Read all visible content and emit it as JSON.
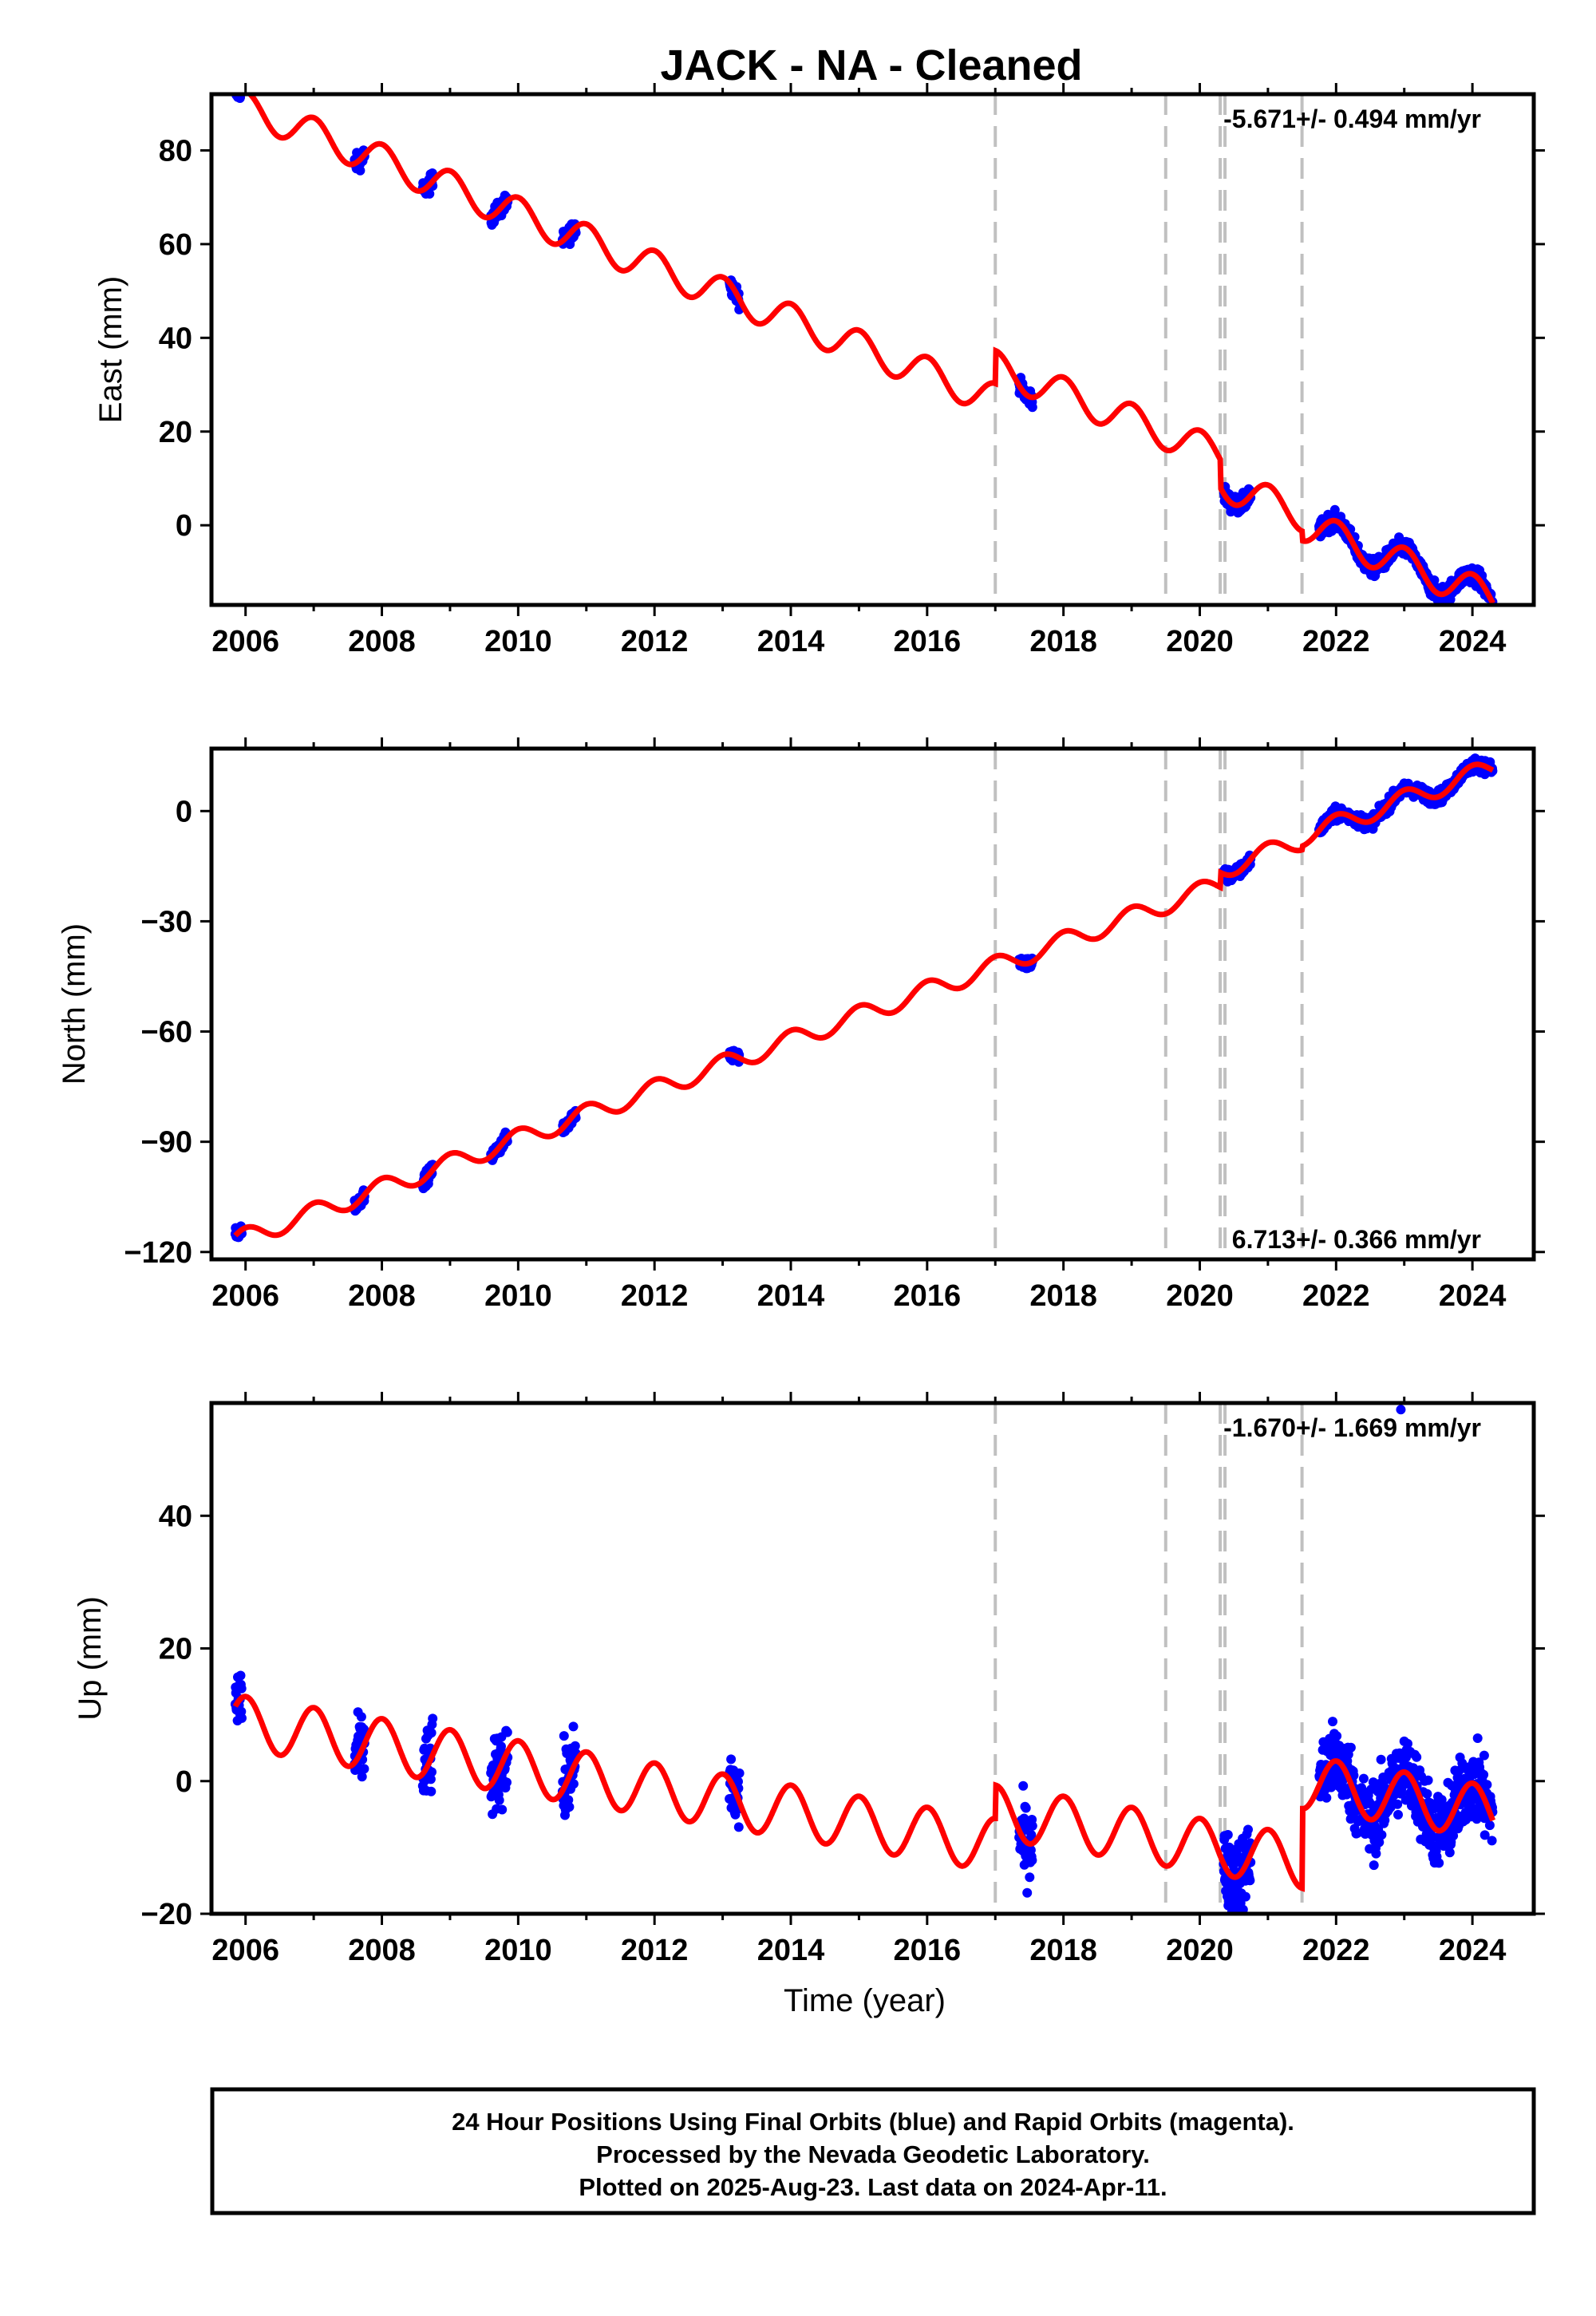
{
  "title": "JACK  - NA - Cleaned",
  "xlabel": "Time (year)",
  "footer": [
    "24 Hour Positions Using Final Orbits (blue) and Rapid Orbits (magenta).",
    "Processed by the Nevada Geodetic Laboratory.",
    "Plotted on 2025-Aug-23. Last data on 2024-Apr-11."
  ],
  "colors": {
    "data": "#0000ff",
    "model": "#ff0000",
    "steps": "#c0c0c0",
    "frame": "#000000"
  },
  "chart_data": [
    {
      "type": "scatter",
      "component": "East",
      "ylabel": "East (mm)",
      "rate_label": "-5.671+/- 0.494 mm/yr",
      "rate": -5.671,
      "rate_sigma": 0.494,
      "xlim": [
        2005.5,
        2024.9
      ],
      "ylim": [
        -17,
        92
      ],
      "xticks": [
        2006,
        2008,
        2010,
        2012,
        2014,
        2016,
        2018,
        2020,
        2022,
        2024
      ],
      "yticks": [
        0,
        20,
        40,
        60,
        80
      ],
      "step_epochs": [
        2017.0,
        2019.5,
        2020.3,
        2020.37,
        2021.5
      ],
      "model": {
        "intercept": 90.0,
        "t0": 2005.85,
        "rate": -5.671,
        "amp": 3.5,
        "offsets": [
          [
            2017.0,
            7.0
          ],
          [
            2020.3,
            -6.0
          ],
          [
            2021.5,
            -2.0
          ]
        ]
      },
      "observation_epochs": [
        [
          2005.85,
          2005.95
        ],
        [
          2007.6,
          2007.75
        ],
        [
          2008.6,
          2008.75
        ],
        [
          2009.6,
          2009.85
        ],
        [
          2010.65,
          2010.85
        ],
        [
          2013.1,
          2013.25
        ],
        [
          2017.35,
          2017.55
        ],
        [
          2020.35,
          2020.75
        ],
        [
          2021.75,
          2024.3
        ]
      ]
    },
    {
      "type": "scatter",
      "component": "North",
      "ylabel": "North (mm)",
      "rate_label": "6.713+/- 0.366 mm/yr",
      "rate": 6.713,
      "rate_sigma": 0.366,
      "xlim": [
        2005.5,
        2024.9
      ],
      "ylim": [
        -122,
        17
      ],
      "xticks": [
        2006,
        2008,
        2010,
        2012,
        2014,
        2016,
        2018,
        2020,
        2022,
        2024
      ],
      "yticks": [
        -120,
        -90,
        -60,
        -30,
        0
      ],
      "tick_labels": [
        "−120",
        "−90",
        "−60",
        "−30",
        "0"
      ],
      "step_epochs": [
        2017.0,
        2019.5,
        2020.3,
        2020.37,
        2021.5
      ],
      "model": {
        "intercept": -117.0,
        "t0": 2005.85,
        "rate": 6.713,
        "amp": 2.6,
        "offsets": [
          [
            2020.3,
            4.0
          ],
          [
            2021.5,
            1.0
          ]
        ]
      },
      "observation_epochs": [
        [
          2005.85,
          2005.95
        ],
        [
          2007.6,
          2007.75
        ],
        [
          2008.6,
          2008.75
        ],
        [
          2009.6,
          2009.85
        ],
        [
          2010.65,
          2010.85
        ],
        [
          2013.1,
          2013.25
        ],
        [
          2017.35,
          2017.55
        ],
        [
          2020.35,
          2020.75
        ],
        [
          2021.75,
          2024.3
        ]
      ]
    },
    {
      "type": "scatter",
      "component": "Up",
      "ylabel": "Up (mm)",
      "rate_label": "-1.670+/- 1.669 mm/yr",
      "rate": -1.67,
      "rate_sigma": 1.669,
      "xlim": [
        2005.5,
        2024.9
      ],
      "ylim": [
        -20,
        57
      ],
      "xticks": [
        2006,
        2008,
        2010,
        2012,
        2014,
        2016,
        2018,
        2020,
        2022,
        2024
      ],
      "yticks": [
        -20,
        0,
        20,
        40
      ],
      "tick_labels": [
        "−20",
        "0",
        "20",
        "40"
      ],
      "step_epochs": [
        2017.0,
        2019.5,
        2020.3,
        2020.37,
        2021.5
      ],
      "model": {
        "intercept": 9.0,
        "t0": 2005.85,
        "rate": -1.67,
        "amp": 4.0,
        "offsets": [
          [
            2017.0,
            5.0
          ],
          [
            2021.5,
            12.0
          ]
        ]
      },
      "observation_epochs": [
        [
          2005.85,
          2005.95
        ],
        [
          2007.6,
          2007.75
        ],
        [
          2008.6,
          2008.75
        ],
        [
          2009.6,
          2009.85
        ],
        [
          2010.65,
          2010.85
        ],
        [
          2013.1,
          2013.25
        ],
        [
          2017.35,
          2017.55
        ],
        [
          2020.35,
          2020.75
        ],
        [
          2021.75,
          2024.3
        ]
      ],
      "outlier": [
        2022.95,
        56
      ]
    }
  ]
}
